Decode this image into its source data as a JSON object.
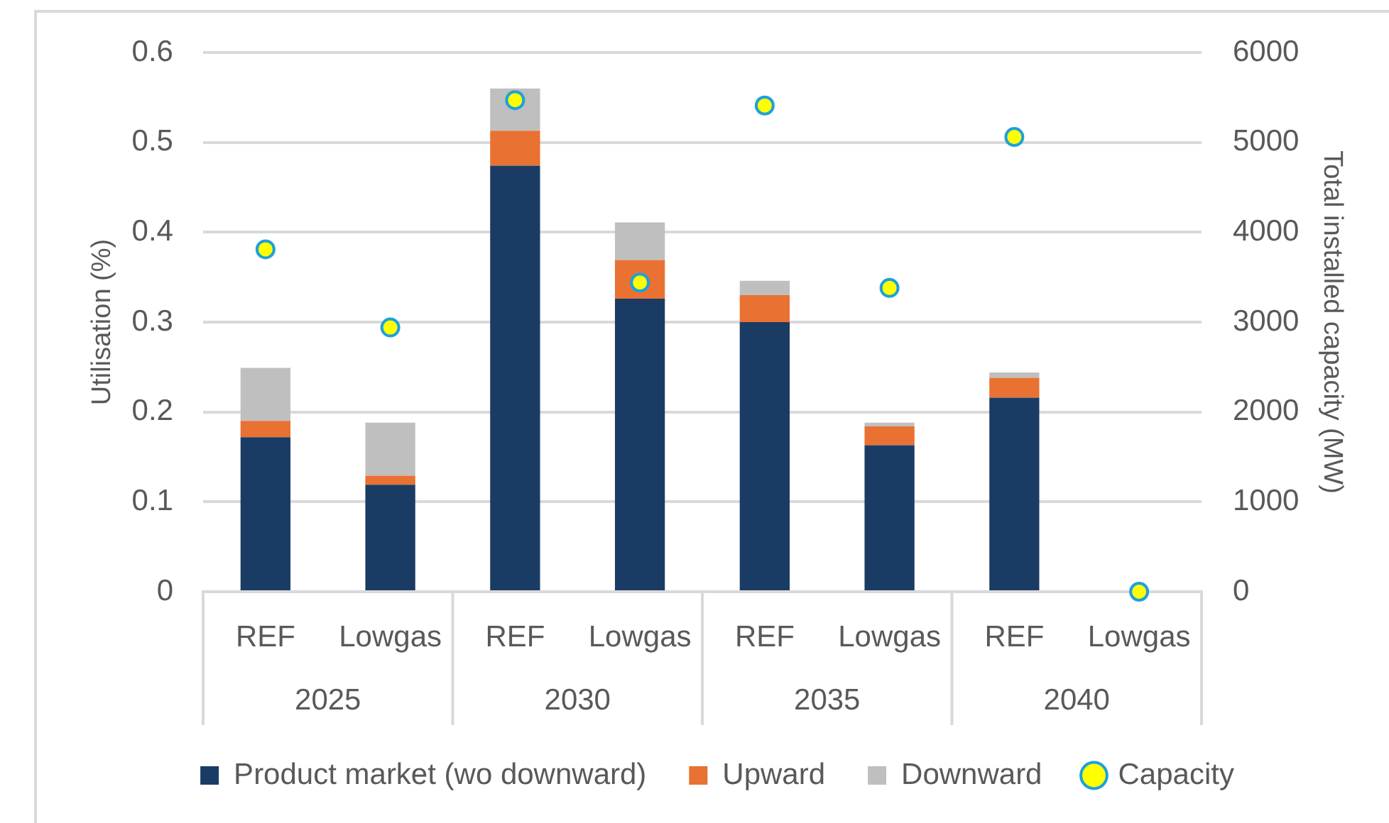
{
  "chart_data": {
    "type": "bar",
    "stacked": true,
    "categories": [
      "REF",
      "Lowgas",
      "REF",
      "Lowgas",
      "REF",
      "Lowgas",
      "REF",
      "Lowgas"
    ],
    "annotations": [
      "2025",
      "2030",
      "2035",
      "2040"
    ],
    "ylabel": "Utilisation (%)",
    "y2label": "Total installed capacity (MW)",
    "ylim": [
      0,
      0.6
    ],
    "yticks": [
      0,
      0.1,
      0.2,
      0.3,
      0.4,
      0.5,
      0.6
    ],
    "y2lim": [
      0,
      6000
    ],
    "y2ticks": [
      0,
      1000,
      2000,
      3000,
      4000,
      5000,
      6000
    ],
    "grid": "y",
    "legend": "bottom",
    "series": [
      {
        "name": "Product market (wo downward)",
        "color": "#1a3c64",
        "values": [
          0.172,
          0.119,
          0.474,
          0.326,
          0.3,
          0.163,
          0.216,
          null
        ]
      },
      {
        "name": "Upward",
        "color": "#e97132",
        "values": [
          0.018,
          0.01,
          0.039,
          0.043,
          0.03,
          0.021,
          0.022,
          null
        ]
      },
      {
        "name": "Downward",
        "color": "#bfbfbf",
        "values": [
          0.059,
          0.059,
          0.047,
          0.042,
          0.016,
          0.004,
          0.006,
          null
        ]
      },
      {
        "name": "Capacity",
        "type": "scatter",
        "axis": "y2",
        "marker": "circle",
        "color": "#ffff00",
        "values": [
          3810,
          2940,
          5470,
          3440,
          5410,
          3380,
          5060,
          0
        ]
      }
    ]
  }
}
